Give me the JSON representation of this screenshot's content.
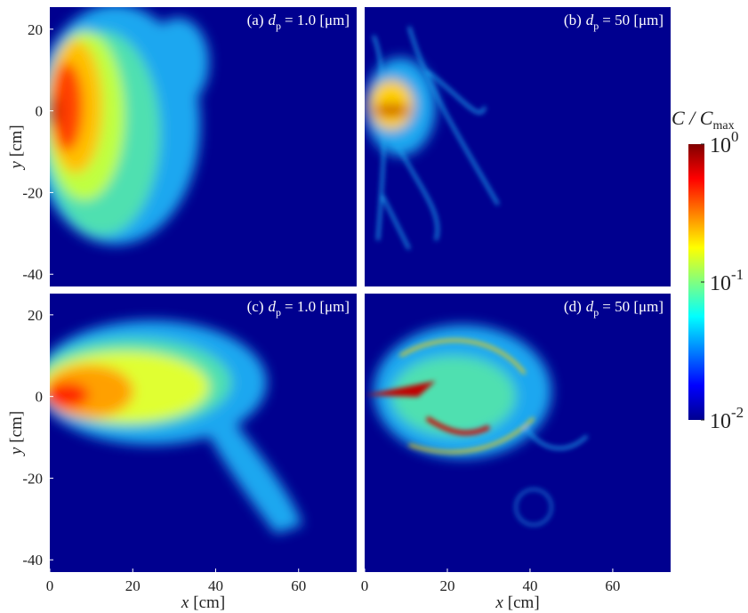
{
  "chart_data": [
    {
      "type": "heatmap",
      "panel": "(a)",
      "symbol": "d",
      "subscript": "p",
      "value_text": "= 1.0 [μm]",
      "background": "#00008f",
      "xlim": [
        0,
        74
      ],
      "ylim": [
        -43,
        25.4
      ],
      "yticks": [
        20,
        0,
        -20,
        -40
      ],
      "ylabel_var": "y",
      "ylabel_unit": "[cm]"
    },
    {
      "type": "heatmap",
      "panel": "(b)",
      "symbol": "d",
      "subscript": "p",
      "value_text": "= 50 [μm]",
      "background": "#00008f",
      "xlim": [
        0,
        74
      ],
      "ylim": [
        -43,
        25.4
      ]
    },
    {
      "type": "heatmap",
      "panel": "(c)",
      "symbol": "d",
      "subscript": "p",
      "value_text": "= 1.0 [μm]",
      "background": "#00008f",
      "xlim": [
        0,
        74
      ],
      "ylim": [
        -43,
        25.2
      ],
      "xticks": [
        0,
        20,
        40,
        60
      ],
      "yticks": [
        20,
        0,
        -20,
        -40
      ],
      "xlabel_var": "x",
      "xlabel_unit": "[cm]",
      "ylabel_var": "y",
      "ylabel_unit": "[cm]"
    },
    {
      "type": "heatmap",
      "panel": "(d)",
      "symbol": "d",
      "subscript": "p",
      "value_text": "= 50 [μm]",
      "background": "#00008f",
      "xlim": [
        0,
        74
      ],
      "ylim": [
        -43,
        25.2
      ],
      "xticks": [
        0,
        20,
        40,
        60
      ],
      "xlabel_var": "x",
      "xlabel_unit": "[cm]"
    },
    {
      "type": "colorbar",
      "log_scale": true,
      "ylim": [
        0.01,
        1
      ],
      "label_var": "C / C",
      "label_sub": "max",
      "colors": [
        "#00008f",
        "#0000ff",
        "#0080ff",
        "#00ffff",
        "#80ff80",
        "#ffff00",
        "#ff8000",
        "#ff0000",
        "#800000"
      ],
      "yticks": [
        {
          "value": 1,
          "label": "10",
          "superscript": "0"
        },
        {
          "value": 0.1,
          "label": "10",
          "superscript": "-1"
        },
        {
          "value": 0.01,
          "label": "10",
          "superscript": "-2"
        }
      ]
    }
  ]
}
